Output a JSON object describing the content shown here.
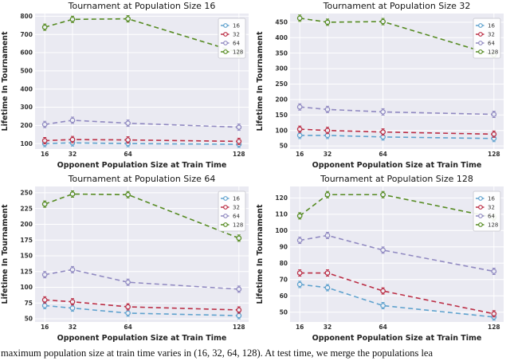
{
  "caption": "maximum population size at train time varies in (16, 32, 64, 128). At test time, we merge the populations lea",
  "palette": {
    "s16": "#5fa2ce",
    "s32": "#bb2e45",
    "s64": "#9089c1",
    "s128": "#568b22"
  },
  "plot_style": {
    "plot_background": "#eaeaf2",
    "gridline_color": "#ffffff",
    "line_style": "dashed",
    "marker": "open-circle",
    "error_bars": true
  },
  "chart_data": [
    {
      "type": "line",
      "title": "Tournament at Population Size 16",
      "xlabel": "Opponent Population Size at Train Time",
      "ylabel": "Lifetime In Tournament",
      "x": [
        16,
        32,
        64,
        128
      ],
      "xticks": [
        16,
        32,
        64,
        128
      ],
      "yticks": [
        100,
        200,
        300,
        400,
        500,
        600,
        700,
        800
      ],
      "ylim": [
        70,
        815
      ],
      "grid": true,
      "legend_position": "upper right",
      "series": [
        {
          "name": "16",
          "color": "#5fa2ce",
          "values": [
            100,
            104,
            100,
            96
          ]
        },
        {
          "name": "32",
          "color": "#bb2e45",
          "values": [
            116,
            122,
            120,
            112
          ]
        },
        {
          "name": "64",
          "color": "#9089c1",
          "values": [
            205,
            228,
            212,
            190
          ]
        },
        {
          "name": "128",
          "color": "#568b22",
          "values": [
            740,
            783,
            786,
            600
          ]
        }
      ]
    },
    {
      "type": "line",
      "title": "Tournament at Population Size 32",
      "xlabel": "Opponent Population Size at Train Time",
      "ylabel": "Lifetime In Tournament",
      "x": [
        16,
        32,
        64,
        128
      ],
      "xticks": [
        16,
        32,
        64,
        128
      ],
      "yticks": [
        50,
        100,
        150,
        200,
        250,
        300,
        350,
        400,
        450
      ],
      "ylim": [
        40,
        478
      ],
      "grid": true,
      "legend_position": "upper right",
      "series": [
        {
          "name": "16",
          "color": "#5fa2ce",
          "values": [
            84,
            84,
            79,
            74
          ]
        },
        {
          "name": "32",
          "color": "#bb2e45",
          "values": [
            104,
            100,
            95,
            88
          ]
        },
        {
          "name": "64",
          "color": "#9089c1",
          "values": [
            176,
            168,
            160,
            152
          ]
        },
        {
          "name": "128",
          "color": "#568b22",
          "values": [
            463,
            450,
            452,
            344
          ]
        }
      ]
    },
    {
      "type": "line",
      "title": "Tournament at Population Size 64",
      "xlabel": "Opponent Population Size at Train Time",
      "ylabel": "Lifetime In Tournament",
      "x": [
        16,
        32,
        64,
        128
      ],
      "xticks": [
        16,
        32,
        64,
        128
      ],
      "yticks": [
        50,
        75,
        100,
        125,
        150,
        175,
        200,
        225,
        250
      ],
      "ylim": [
        45,
        260
      ],
      "grid": true,
      "legend_position": "upper right",
      "series": [
        {
          "name": "16",
          "color": "#5fa2ce",
          "values": [
            71,
            67,
            59,
            55
          ]
        },
        {
          "name": "32",
          "color": "#bb2e45",
          "values": [
            80,
            77,
            69,
            64
          ]
        },
        {
          "name": "64",
          "color": "#9089c1",
          "values": [
            120,
            128,
            108,
            97
          ]
        },
        {
          "name": "128",
          "color": "#568b22",
          "values": [
            232,
            248,
            247,
            178
          ]
        }
      ]
    },
    {
      "type": "line",
      "title": "Tournament at Population Size 128",
      "xlabel": "Opponent Population Size at Train Time",
      "ylabel": "Lifetime In Tournament",
      "x": [
        16,
        32,
        64,
        128
      ],
      "xticks": [
        16,
        32,
        64,
        128
      ],
      "yticks": [
        50,
        60,
        70,
        80,
        90,
        100,
        110,
        120
      ],
      "ylim": [
        44,
        127
      ],
      "grid": true,
      "legend_position": "upper right",
      "series": [
        {
          "name": "16",
          "color": "#5fa2ce",
          "values": [
            67,
            65,
            54,
            47
          ]
        },
        {
          "name": "32",
          "color": "#bb2e45",
          "values": [
            74,
            74,
            63,
            49
          ]
        },
        {
          "name": "64",
          "color": "#9089c1",
          "values": [
            94,
            97,
            88,
            75
          ]
        },
        {
          "name": "128",
          "color": "#568b22",
          "values": [
            109,
            122,
            122,
            108
          ]
        }
      ]
    }
  ]
}
